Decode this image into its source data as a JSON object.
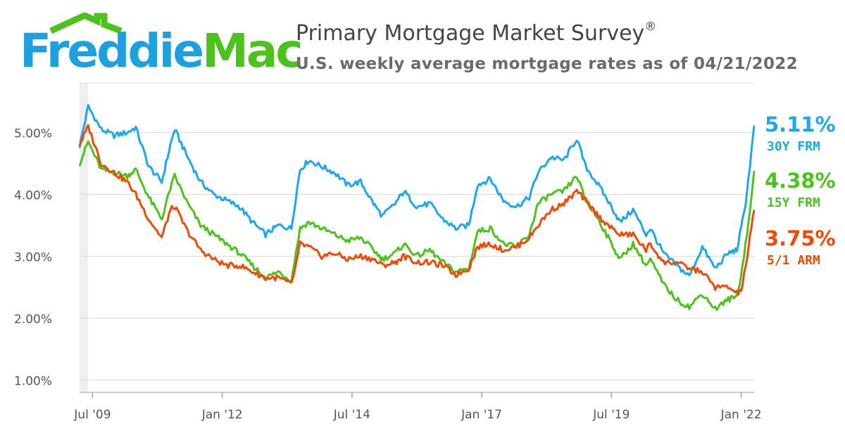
{
  "brand": {
    "name_part1": "Freddie",
    "name_part2": "Mac",
    "color_blue": "#1ba0e0",
    "color_green": "#4cc21c"
  },
  "chart_data": {
    "type": "line",
    "title": "Primary Mortgage Market Survey",
    "title_mark": "®",
    "subtitle": "U.S. weekly average mortgage rates as of 04/21/2022",
    "xlabel": "",
    "ylabel": "",
    "x_range": [
      "2009-04",
      "2022-04"
    ],
    "ylim": [
      0.8,
      5.8
    ],
    "y_ticks": [
      {
        "value": 1,
        "label": "1.00%"
      },
      {
        "value": 2,
        "label": "2.00%"
      },
      {
        "value": 3,
        "label": "3.00%"
      },
      {
        "value": 4,
        "label": "4.00%"
      },
      {
        "value": 5,
        "label": "5.00%"
      }
    ],
    "x_ticks": [
      {
        "date": "2009-07",
        "label": "Jul '09"
      },
      {
        "date": "2012-01",
        "label": "Jan '12"
      },
      {
        "date": "2014-07",
        "label": "Jul '14"
      },
      {
        "date": "2017-01",
        "label": "Jan '17"
      },
      {
        "date": "2019-07",
        "label": "Jul '19"
      },
      {
        "date": "2022-01",
        "label": "Jan '22"
      }
    ],
    "grid": true,
    "legend_position": "right",
    "series": [
      {
        "name": "30Y FRM",
        "latest_label": "5.11%",
        "color": "#1ba8ec",
        "points": [
          [
            "2009-04",
            4.78
          ],
          [
            "2009-06",
            5.42
          ],
          [
            "2009-09",
            5.05
          ],
          [
            "2009-12",
            4.95
          ],
          [
            "2010-03",
            5.0
          ],
          [
            "2010-05",
            5.08
          ],
          [
            "2010-08",
            4.45
          ],
          [
            "2010-11",
            4.2
          ],
          [
            "2011-01",
            4.8
          ],
          [
            "2011-02",
            5.05
          ],
          [
            "2011-05",
            4.6
          ],
          [
            "2011-08",
            4.2
          ],
          [
            "2011-11",
            4.0
          ],
          [
            "2012-02",
            3.9
          ],
          [
            "2012-05",
            3.8
          ],
          [
            "2012-08",
            3.55
          ],
          [
            "2012-11",
            3.35
          ],
          [
            "2013-02",
            3.5
          ],
          [
            "2013-05",
            3.45
          ],
          [
            "2013-06",
            3.95
          ],
          [
            "2013-07",
            4.4
          ],
          [
            "2013-09",
            4.55
          ],
          [
            "2013-12",
            4.45
          ],
          [
            "2014-03",
            4.35
          ],
          [
            "2014-06",
            4.15
          ],
          [
            "2014-09",
            4.2
          ],
          [
            "2014-12",
            3.85
          ],
          [
            "2015-02",
            3.65
          ],
          [
            "2015-05",
            3.85
          ],
          [
            "2015-07",
            4.05
          ],
          [
            "2015-10",
            3.8
          ],
          [
            "2016-01",
            3.85
          ],
          [
            "2016-04",
            3.6
          ],
          [
            "2016-07",
            3.45
          ],
          [
            "2016-10",
            3.5
          ],
          [
            "2016-12",
            4.15
          ],
          [
            "2017-03",
            4.25
          ],
          [
            "2017-06",
            3.9
          ],
          [
            "2017-09",
            3.8
          ],
          [
            "2017-12",
            3.95
          ],
          [
            "2018-02",
            4.35
          ],
          [
            "2018-05",
            4.6
          ],
          [
            "2018-08",
            4.55
          ],
          [
            "2018-11",
            4.9
          ],
          [
            "2019-01",
            4.45
          ],
          [
            "2019-04",
            4.15
          ],
          [
            "2019-07",
            3.8
          ],
          [
            "2019-09",
            3.55
          ],
          [
            "2019-12",
            3.75
          ],
          [
            "2020-03",
            3.35
          ],
          [
            "2020-04",
            3.45
          ],
          [
            "2020-07",
            3.05
          ],
          [
            "2020-10",
            2.85
          ],
          [
            "2021-01",
            2.68
          ],
          [
            "2021-04",
            3.15
          ],
          [
            "2021-07",
            2.8
          ],
          [
            "2021-10",
            3.05
          ],
          [
            "2021-12",
            3.1
          ],
          [
            "2022-01",
            3.45
          ],
          [
            "2022-02",
            3.85
          ],
          [
            "2022-03",
            4.45
          ],
          [
            "2022-04",
            5.11
          ]
        ]
      },
      {
        "name": "15Y FRM",
        "latest_label": "4.38%",
        "color": "#4cc21c",
        "points": [
          [
            "2009-04",
            4.5
          ],
          [
            "2009-06",
            4.85
          ],
          [
            "2009-09",
            4.4
          ],
          [
            "2009-12",
            4.35
          ],
          [
            "2010-03",
            4.3
          ],
          [
            "2010-05",
            4.4
          ],
          [
            "2010-08",
            3.95
          ],
          [
            "2010-11",
            3.6
          ],
          [
            "2011-01",
            4.1
          ],
          [
            "2011-02",
            4.3
          ],
          [
            "2011-05",
            3.85
          ],
          [
            "2011-08",
            3.5
          ],
          [
            "2011-11",
            3.35
          ],
          [
            "2012-02",
            3.2
          ],
          [
            "2012-05",
            3.05
          ],
          [
            "2012-08",
            2.85
          ],
          [
            "2012-11",
            2.65
          ],
          [
            "2013-02",
            2.75
          ],
          [
            "2013-05",
            2.6
          ],
          [
            "2013-06",
            3.05
          ],
          [
            "2013-07",
            3.45
          ],
          [
            "2013-09",
            3.55
          ],
          [
            "2013-12",
            3.45
          ],
          [
            "2014-03",
            3.35
          ],
          [
            "2014-06",
            3.25
          ],
          [
            "2014-09",
            3.3
          ],
          [
            "2014-12",
            3.1
          ],
          [
            "2015-02",
            2.95
          ],
          [
            "2015-05",
            3.05
          ],
          [
            "2015-07",
            3.2
          ],
          [
            "2015-10",
            3.0
          ],
          [
            "2016-01",
            3.1
          ],
          [
            "2016-04",
            2.9
          ],
          [
            "2016-07",
            2.75
          ],
          [
            "2016-10",
            2.8
          ],
          [
            "2016-12",
            3.4
          ],
          [
            "2017-03",
            3.45
          ],
          [
            "2017-06",
            3.2
          ],
          [
            "2017-09",
            3.15
          ],
          [
            "2017-12",
            3.35
          ],
          [
            "2018-02",
            3.85
          ],
          [
            "2018-05",
            4.0
          ],
          [
            "2018-08",
            4.05
          ],
          [
            "2018-11",
            4.3
          ],
          [
            "2019-01",
            3.9
          ],
          [
            "2019-04",
            3.6
          ],
          [
            "2019-07",
            3.2
          ],
          [
            "2019-09",
            2.95
          ],
          [
            "2019-12",
            3.2
          ],
          [
            "2020-03",
            2.85
          ],
          [
            "2020-04",
            2.95
          ],
          [
            "2020-07",
            2.55
          ],
          [
            "2020-10",
            2.3
          ],
          [
            "2021-01",
            2.18
          ],
          [
            "2021-04",
            2.4
          ],
          [
            "2021-07",
            2.15
          ],
          [
            "2021-10",
            2.3
          ],
          [
            "2021-12",
            2.35
          ],
          [
            "2022-01",
            2.7
          ],
          [
            "2022-02",
            3.2
          ],
          [
            "2022-03",
            3.7
          ],
          [
            "2022-04",
            4.38
          ]
        ]
      },
      {
        "name": "5/1 ARM",
        "latest_label": "3.75%",
        "color": "#f04a07",
        "points": [
          [
            "2009-04",
            4.8
          ],
          [
            "2009-06",
            5.1
          ],
          [
            "2009-09",
            4.5
          ],
          [
            "2009-12",
            4.35
          ],
          [
            "2010-03",
            4.2
          ],
          [
            "2010-05",
            4.0
          ],
          [
            "2010-08",
            3.6
          ],
          [
            "2010-11",
            3.3
          ],
          [
            "2011-01",
            3.75
          ],
          [
            "2011-02",
            3.8
          ],
          [
            "2011-05",
            3.4
          ],
          [
            "2011-08",
            3.1
          ],
          [
            "2011-11",
            2.95
          ],
          [
            "2012-02",
            2.85
          ],
          [
            "2012-05",
            2.85
          ],
          [
            "2012-08",
            2.75
          ],
          [
            "2012-11",
            2.65
          ],
          [
            "2013-02",
            2.65
          ],
          [
            "2013-05",
            2.55
          ],
          [
            "2013-06",
            2.85
          ],
          [
            "2013-07",
            3.2
          ],
          [
            "2013-09",
            3.15
          ],
          [
            "2013-12",
            3.0
          ],
          [
            "2014-03",
            3.05
          ],
          [
            "2014-06",
            2.95
          ],
          [
            "2014-09",
            3.0
          ],
          [
            "2014-12",
            2.95
          ],
          [
            "2015-02",
            2.85
          ],
          [
            "2015-05",
            2.9
          ],
          [
            "2015-07",
            3.0
          ],
          [
            "2015-10",
            2.9
          ],
          [
            "2016-01",
            2.9
          ],
          [
            "2016-04",
            2.85
          ],
          [
            "2016-07",
            2.7
          ],
          [
            "2016-10",
            2.8
          ],
          [
            "2016-12",
            3.15
          ],
          [
            "2017-03",
            3.2
          ],
          [
            "2017-06",
            3.1
          ],
          [
            "2017-09",
            3.15
          ],
          [
            "2017-12",
            3.3
          ],
          [
            "2018-02",
            3.5
          ],
          [
            "2018-05",
            3.75
          ],
          [
            "2018-08",
            3.85
          ],
          [
            "2018-11",
            4.05
          ],
          [
            "2019-01",
            3.9
          ],
          [
            "2019-04",
            3.65
          ],
          [
            "2019-07",
            3.45
          ],
          [
            "2019-09",
            3.35
          ],
          [
            "2019-12",
            3.35
          ],
          [
            "2020-03",
            3.1
          ],
          [
            "2020-04",
            3.2
          ],
          [
            "2020-07",
            2.9
          ],
          [
            "2020-10",
            2.9
          ],
          [
            "2021-01",
            2.8
          ],
          [
            "2021-04",
            2.75
          ],
          [
            "2021-07",
            2.5
          ],
          [
            "2021-10",
            2.5
          ],
          [
            "2021-12",
            2.4
          ],
          [
            "2022-01",
            2.45
          ],
          [
            "2022-02",
            2.8
          ],
          [
            "2022-03",
            3.3
          ],
          [
            "2022-04",
            3.75
          ]
        ]
      }
    ]
  }
}
